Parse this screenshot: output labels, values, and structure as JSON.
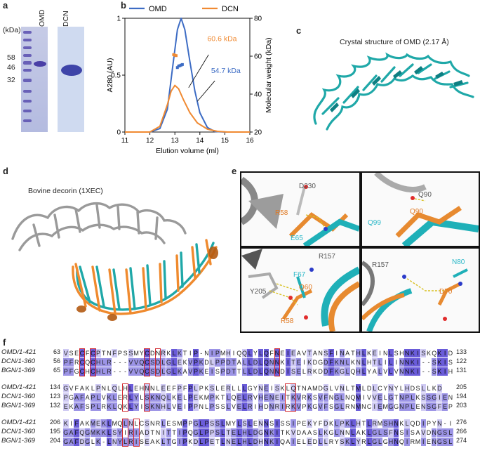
{
  "panels": {
    "a": "a",
    "b": "b",
    "c": "c",
    "d": "d",
    "e": "e",
    "f": "f"
  },
  "gel": {
    "kda_label": "(kDa)",
    "markers": [
      "58",
      "46",
      "32"
    ],
    "lanes": [
      "OMD",
      "DCN"
    ]
  },
  "chart_data": {
    "type": "line",
    "legend": [
      "OMD",
      "DCN"
    ],
    "xlabel": "Elution volume (ml)",
    "ylabel": "A280 (AU)",
    "ylabel_right": "Molecular weight (kDa)",
    "xlim": [
      11,
      16
    ],
    "ylim": [
      0,
      1
    ],
    "ylim_right": [
      20,
      80
    ],
    "x_ticks": [
      "11",
      "12",
      "13",
      "14",
      "15",
      "16"
    ],
    "y_ticks": [
      "0",
      "0.5",
      "1"
    ],
    "y_ticks_right": [
      "20",
      "40",
      "60",
      "80"
    ],
    "series": [
      {
        "name": "OMD",
        "color": "#3d6cc4",
        "x": [
          11,
          12,
          12.4,
          12.7,
          12.9,
          13.1,
          13.25,
          13.4,
          13.6,
          13.8,
          14.0,
          14.3,
          14.6,
          15,
          16
        ],
        "y": [
          0,
          0.0,
          0.03,
          0.2,
          0.55,
          0.9,
          1.0,
          0.9,
          0.62,
          0.36,
          0.17,
          0.04,
          0.005,
          0,
          0
        ]
      },
      {
        "name": "DCN",
        "color": "#f08a32",
        "x": [
          11,
          12,
          12.4,
          12.7,
          12.85,
          13.0,
          13.15,
          13.35,
          13.6,
          13.9,
          14.3,
          14.7,
          15.1,
          16
        ],
        "y": [
          0,
          0.0,
          0.05,
          0.24,
          0.36,
          0.41,
          0.38,
          0.28,
          0.17,
          0.08,
          0.025,
          0.006,
          0,
          0
        ]
      }
    ],
    "mw_points": [
      {
        "series": "DCN",
        "color": "#f08a32",
        "x": [
          12.95,
          13.0,
          13.05
        ],
        "mw": [
          60.8,
          60.5,
          60.3
        ]
      },
      {
        "series": "OMD",
        "color": "#3d6cc4",
        "x": [
          13.1,
          13.15,
          13.2,
          13.25,
          13.3
        ],
        "mw": [
          54.0,
          54.8,
          55.0,
          55.3,
          55.6
        ]
      }
    ],
    "annotations": [
      {
        "text": "60.6 kDa",
        "color": "#f08a32"
      },
      {
        "text": "54.7 kDa",
        "color": "#3d6cc4"
      }
    ]
  },
  "structure_c": {
    "title": "Crystal structure of OMD (2.17 Å)"
  },
  "structure_d": {
    "title": "Bovine decorin (1XEC)"
  },
  "closeups": [
    {
      "labels": [
        {
          "t": "D230",
          "c": "#555"
        },
        {
          "t": "R58",
          "c": "#e07820"
        },
        {
          "t": "E65",
          "c": "#2bb8c8"
        }
      ]
    },
    {
      "labels": [
        {
          "t": "Q90",
          "c": "#555"
        },
        {
          "t": "Q90",
          "c": "#e07820"
        },
        {
          "t": "Q99",
          "c": "#2bb8c8"
        }
      ]
    },
    {
      "labels": [
        {
          "t": "R157",
          "c": "#555"
        },
        {
          "t": "F67",
          "c": "#2bb8c8"
        },
        {
          "t": "Y205",
          "c": "#555"
        },
        {
          "t": "Q60",
          "c": "#e07820"
        },
        {
          "t": "R58",
          "c": "#e07820"
        }
      ]
    },
    {
      "labels": [
        {
          "t": "R157",
          "c": "#555"
        },
        {
          "t": "N80",
          "c": "#2bb8c8"
        },
        {
          "t": "D70",
          "c": "#e07820"
        }
      ]
    }
  ],
  "alignment": {
    "blocks": [
      {
        "rows": [
          {
            "name": "OMD/1-421",
            "start": "63",
            "seq": "VSECFCPTNFPSSMYCDNRKLKTIP-NIPMHIQQLYLQFNEIEAVTANSFINATHLKEINLSHNKISKQKID",
            "end": "133"
          },
          {
            "name": "DCN/1-360",
            "start": "56",
            "seq": "PFRCQCHLR---VVQCSDLGLEKVPKDLPPDTALLDLQNNKITEIKDGDFKNLKNLHTLILINNKI--SKIS",
            "end": "122"
          },
          {
            "name": "BGN/1-369",
            "start": "65",
            "seq": "PFGCHCHLR---VVQCSDLGLKAVPKEISPDTTLLDLQNNDISELRKDDFKGLQHLYALVLVNNKI--SKIH",
            "end": "131"
          }
        ]
      },
      {
        "rows": [
          {
            "name": "OMD/1-421",
            "start": "134",
            "seq": "GVFAKLPNLQLHLEHNNLEEFPFPLPKSLERLLLGYNEISKLQTNAMDGLVNLTMLDLCYNYLHDSLLKD",
            "end": "205"
          },
          {
            "name": "DCN/1-360",
            "start": "123",
            "seq": "PGAFAPLVKLERLYLSKNQLKELPEKMPKTLQELRVHENEITKVRKSVFNGLNQMIVVELGTNPLKSSGIEN",
            "end": "194"
          },
          {
            "name": "BGN/1-369",
            "start": "132",
            "seq": "EKAFSPLRKLQKLYISKNHLVEIPPNLPSSLVELRIHDNRIRKVPKGVFSGLRNMNCIEMGGNPLENSGFEP",
            "end": "203"
          }
        ]
      },
      {
        "rows": [
          {
            "name": "OMD/1-421",
            "start": "206",
            "seq": "KIFAKMEKLMQLNLCSNRLESMPPGLPSSLMYLSLENNSISSIPEKYFDKLPKLHTLRMSHNKLQDIPYN-I",
            "end": "276"
          },
          {
            "name": "DCN/1-360",
            "start": "195",
            "seq": "GAFQGMKKLSYIRIADTNITTIPQGLPPSLTELHLDGNKITKVDAASLKGLNNLAKLGLSFNSISAVDNGSL",
            "end": "266"
          },
          {
            "name": "BGN/1-369",
            "start": "204",
            "seq": "GAFDGLK-LNYLRISEAKLTGIPKDLPETLNELHLDHNKIQAIELEDLLRYSKLYRLGLGHNQIRMIENGSL",
            "end": "274"
          }
        ]
      }
    ]
  }
}
